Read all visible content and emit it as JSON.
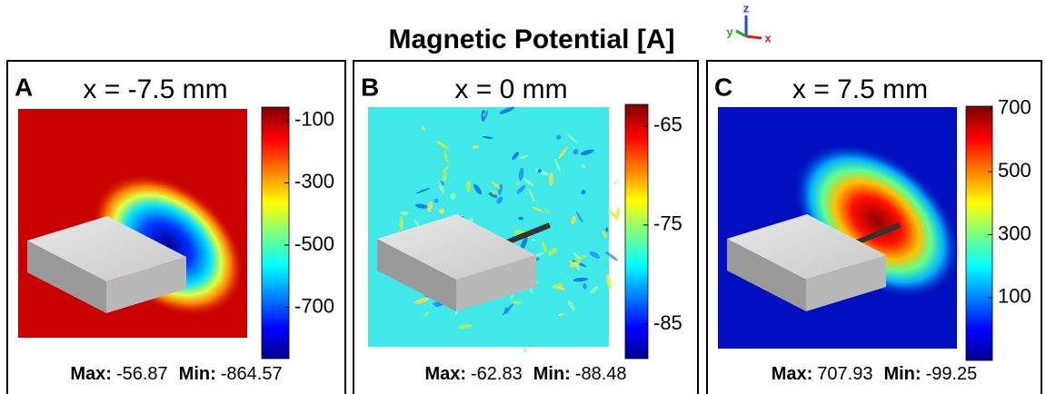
{
  "title": "Magnetic Potential [A]",
  "axes_triad": {
    "y": "y",
    "z": "z",
    "x": "x"
  },
  "panels": [
    {
      "label": "A",
      "subtitle": "x = -7.5 mm",
      "colorbar_ticks": [
        -100,
        -300,
        -500,
        -700
      ],
      "max_label": "Max:",
      "max": -56.87,
      "min_label": "Min:",
      "min": -864.57
    },
    {
      "label": "B",
      "subtitle": "x = 0 mm",
      "colorbar_ticks": [
        -65,
        -75,
        -85
      ],
      "max_label": "Max:",
      "max": -62.83,
      "min_label": "Min:",
      "min": -88.48
    },
    {
      "label": "C",
      "subtitle": "x = 7.5 mm",
      "colorbar_ticks": [
        700,
        500,
        300,
        100
      ],
      "max_label": "Max:",
      "max": 707.93,
      "min_label": "Min:",
      "min": -99.25
    }
  ]
}
